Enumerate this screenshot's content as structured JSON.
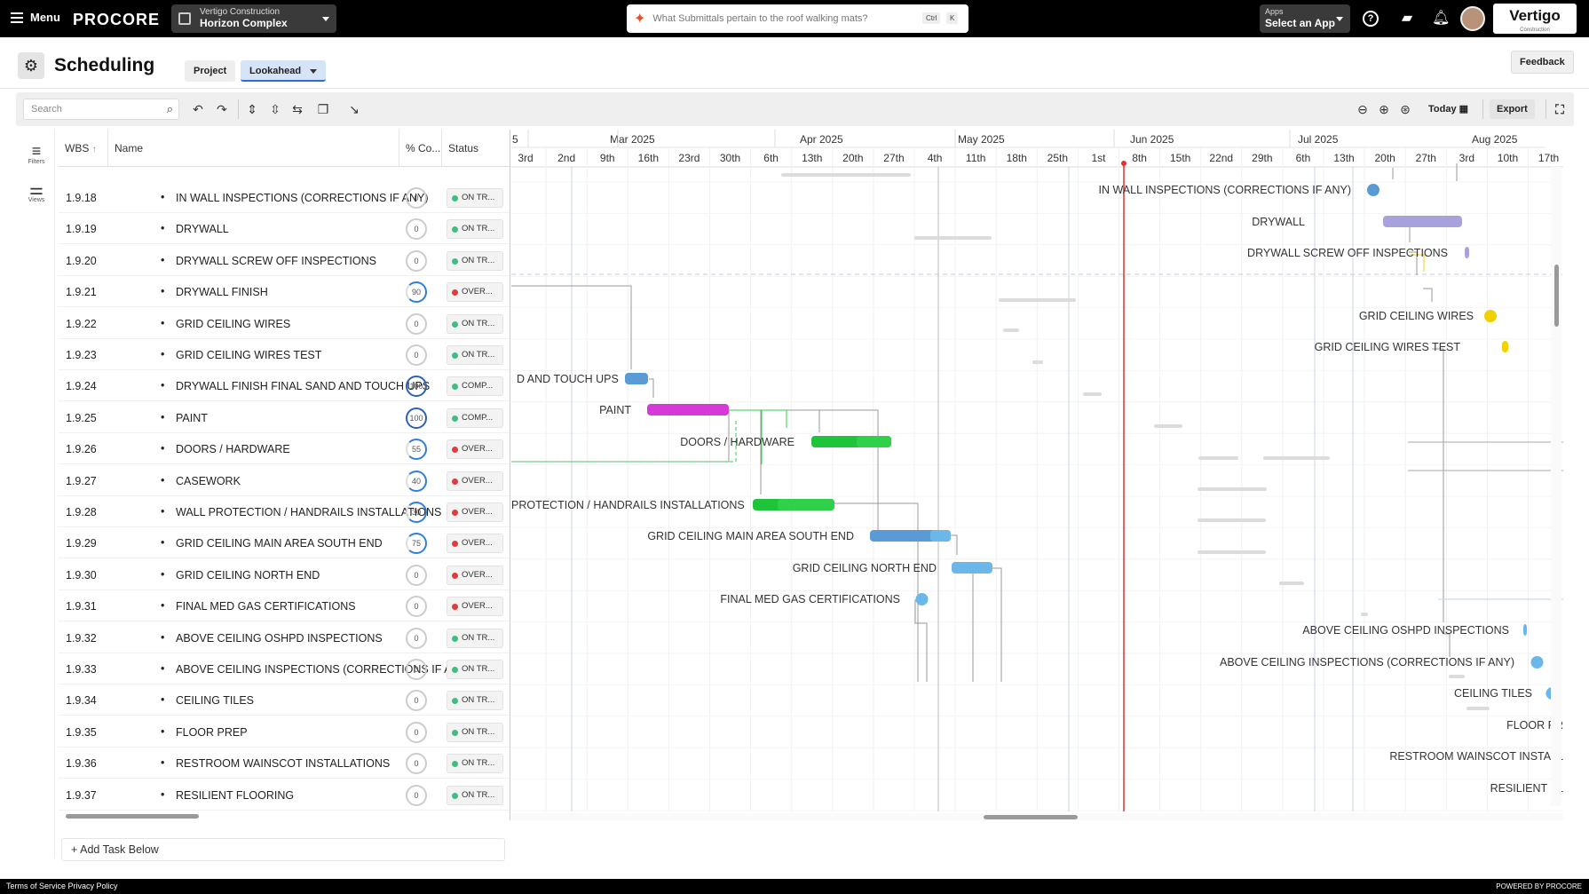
{
  "topbar": {
    "menu_label": "Menu",
    "logo": "PROCORE",
    "project": {
      "company": "Vertigo Construction",
      "name": "Horizon Complex"
    },
    "search_placeholder": "What Submittals pertain to the roof walking mats?",
    "kbd_ctrl": "Ctrl",
    "kbd_k": "K",
    "apps": {
      "small": "Apps",
      "label": "Select an App"
    },
    "company_logo": "Vertigo",
    "company_sub": "Construction"
  },
  "page": {
    "title": "Scheduling",
    "tab_project": "Project",
    "tab_lookahead": "Lookahead",
    "feedback": "Feedback"
  },
  "toolbar": {
    "search_placeholder": "Search",
    "today": "Today",
    "export": "Export"
  },
  "sidebar": {
    "filters": "Filters",
    "views": "Views"
  },
  "grid": {
    "headers": {
      "wbs": "WBS",
      "name": "Name",
      "pct": "% Co...",
      "status": "Status"
    },
    "rows": [
      {
        "wbs": "1.9.18",
        "name": "IN WALL INSPECTIONS (CORRECTIONS IF ANY)",
        "pct": 0,
        "status": "ON TR...",
        "status_color": "#3fbf7f"
      },
      {
        "wbs": "1.9.19",
        "name": "DRYWALL",
        "pct": 0,
        "status": "ON TR...",
        "status_color": "#3fbf7f"
      },
      {
        "wbs": "1.9.20",
        "name": "DRYWALL SCREW OFF INSPECTIONS",
        "pct": 0,
        "status": "ON TR...",
        "status_color": "#3fbf7f"
      },
      {
        "wbs": "1.9.21",
        "name": "DRYWALL FINISH",
        "pct": 90,
        "status": "OVER...",
        "status_color": "#e33b3b"
      },
      {
        "wbs": "1.9.22",
        "name": "GRID CEILING WIRES",
        "pct": 0,
        "status": "ON TR...",
        "status_color": "#3fbf7f"
      },
      {
        "wbs": "1.9.23",
        "name": "GRID CEILING WIRES TEST",
        "pct": 0,
        "status": "ON TR...",
        "status_color": "#3fbf7f"
      },
      {
        "wbs": "1.9.24",
        "name": "DRYWALL FINISH FINAL SAND AND TOUCH UPS",
        "pct": 100,
        "status": "COMP...",
        "status_color": "#3fbf7f"
      },
      {
        "wbs": "1.9.25",
        "name": "PAINT",
        "pct": 100,
        "status": "COMP...",
        "status_color": "#3fbf7f"
      },
      {
        "wbs": "1.9.26",
        "name": "DOORS / HARDWARE",
        "pct": 55,
        "status": "OVER...",
        "status_color": "#e33b3b"
      },
      {
        "wbs": "1.9.27",
        "name": "CASEWORK",
        "pct": 40,
        "status": "OVER...",
        "status_color": "#e33b3b"
      },
      {
        "wbs": "1.9.28",
        "name": "WALL PROTECTION / HANDRAILS INSTALLATIONS",
        "pct": 30,
        "status": "OVER...",
        "status_color": "#e33b3b"
      },
      {
        "wbs": "1.9.29",
        "name": "GRID CEILING MAIN AREA SOUTH END",
        "pct": 75,
        "status": "OVER...",
        "status_color": "#e33b3b"
      },
      {
        "wbs": "1.9.30",
        "name": "GRID CEILING NORTH END",
        "pct": 0,
        "status": "OVER...",
        "status_color": "#e33b3b"
      },
      {
        "wbs": "1.9.31",
        "name": "FINAL MED GAS CERTIFICATIONS",
        "pct": 0,
        "status": "OVER...",
        "status_color": "#e33b3b"
      },
      {
        "wbs": "1.9.32",
        "name": "ABOVE CEILING OSHPD INSPECTIONS",
        "pct": 0,
        "status": "ON TR...",
        "status_color": "#3fbf7f"
      },
      {
        "wbs": "1.9.33",
        "name": "ABOVE CEILING INSPECTIONS (CORRECTIONS IF ANY)",
        "pct": 0,
        "status": "ON TR...",
        "status_color": "#3fbf7f"
      },
      {
        "wbs": "1.9.34",
        "name": "CEILING TILES",
        "pct": 0,
        "status": "ON TR...",
        "status_color": "#3fbf7f"
      },
      {
        "wbs": "1.9.35",
        "name": "FLOOR PREP",
        "pct": 0,
        "status": "ON TR...",
        "status_color": "#3fbf7f"
      },
      {
        "wbs": "1.9.36",
        "name": "RESTROOM WAINSCOT INSTALLATIONS",
        "pct": 0,
        "status": "ON TR...",
        "status_color": "#3fbf7f"
      },
      {
        "wbs": "1.9.37",
        "name": "RESILIENT FLOORING",
        "pct": 0,
        "status": "ON TR...",
        "status_color": "#3fbf7f"
      }
    ],
    "add_task": "Add Task Below"
  },
  "gantt": {
    "months": [
      "Mar 2025",
      "Apr 2025",
      "May 2025",
      "Jun 2025",
      "Jul 2025",
      "Aug 2025"
    ],
    "month_fragment": "5",
    "weeks": [
      "3rd",
      "2nd",
      "9th",
      "16th",
      "23rd",
      "30th",
      "6th",
      "13th",
      "20th",
      "27th",
      "4th",
      "11th",
      "18th",
      "25th",
      "1st",
      "8th",
      "15th",
      "22nd",
      "29th",
      "6th",
      "13th",
      "20th",
      "27th",
      "3rd",
      "10th",
      "17th"
    ],
    "bar_labels": [
      {
        "text": "IN WALL INSPECTIONS (CORRECTIONS IF ANY)"
      },
      {
        "text": "DRYWALL"
      },
      {
        "text": "DRYWALL SCREW OFF INSPECTIONS"
      },
      {
        "text": "GRID CEILING WIRES"
      },
      {
        "text": "GRID CEILING WIRES TEST"
      },
      {
        "text": "D AND TOUCH UPS"
      },
      {
        "text": "PAINT"
      },
      {
        "text": "DOORS / HARDWARE"
      },
      {
        "text": "PROTECTION / HANDRAILS INSTALLATIONS"
      },
      {
        "text": "GRID CEILING MAIN AREA SOUTH END"
      },
      {
        "text": "GRID CEILING NORTH END"
      },
      {
        "text": "FINAL MED GAS CERTIFICATIONS"
      },
      {
        "text": "ABOVE CEILING OSHPD INSPECTIONS"
      },
      {
        "text": "ABOVE CEILING INSPECTIONS (CORRECTIONS IF ANY)"
      },
      {
        "text": "CEILING TILES"
      },
      {
        "text": "FLOOR PR"
      },
      {
        "text": "RESTROOM WAINSCOT INSTALL"
      },
      {
        "text": "RESILIENT FL"
      }
    ],
    "colors": {
      "today": "#e03030",
      "paint": "#d63ad6",
      "green": "#2fd04a",
      "blue": "#6bb7ea",
      "purple": "#a8a2dc",
      "yellow": "#f1d100",
      "steel": "#5b9bd5"
    }
  },
  "footer": {
    "terms": "Terms of Service",
    "privacy": "Privacy Policy",
    "powered": "POWERED BY PROCORE"
  }
}
